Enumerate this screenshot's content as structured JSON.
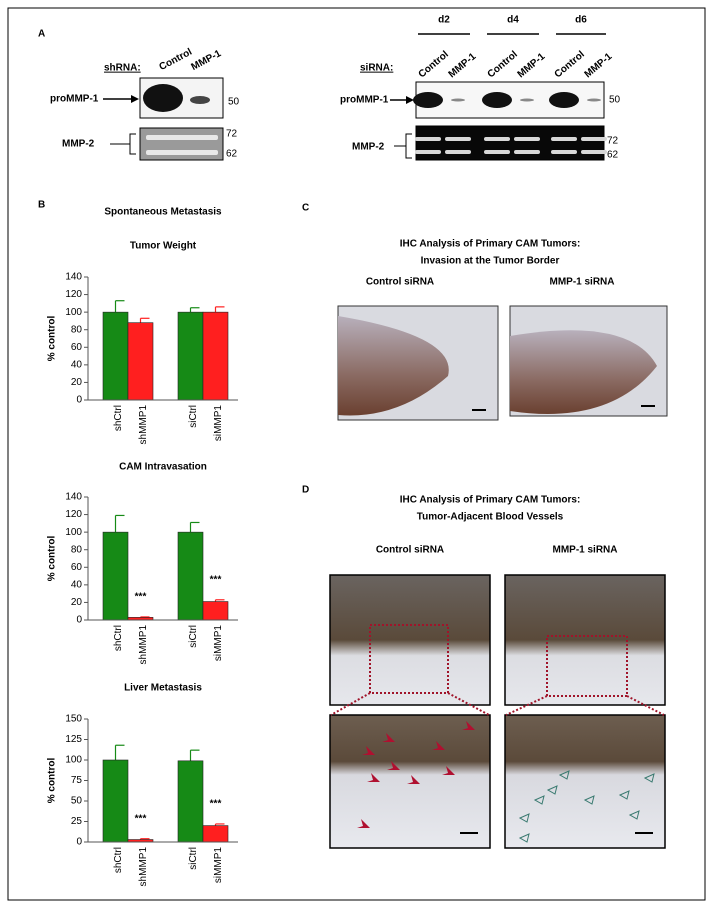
{
  "panels": {
    "a": "A",
    "b": "B",
    "c": "C",
    "d": "D"
  },
  "blot_sh": {
    "label": "shRNA:",
    "lanes": [
      "Control",
      "MMP-1"
    ],
    "bands": [
      "proMMP-1",
      "MMP-2"
    ],
    "markers": [
      50,
      72,
      62
    ]
  },
  "blot_si": {
    "label": "siRNA:",
    "days": [
      "d2",
      "d4",
      "d6"
    ],
    "lanes": [
      "Control",
      "MMP-1",
      "Control",
      "MMP-1",
      "Control",
      "MMP-1"
    ],
    "bands": [
      "proMMP-1",
      "MMP-2"
    ],
    "markers": [
      50,
      72,
      62
    ]
  },
  "panel_b_title": "Spontaneous Metastasis",
  "chart_data": [
    {
      "type": "bar",
      "title": "Tumor Weight",
      "ylabel": "% control",
      "categories": [
        "shCtrl",
        "shMMP1",
        "siCtrl",
        "siMMP1"
      ],
      "values": [
        100,
        88,
        100,
        100
      ],
      "errors": [
        13,
        5,
        5,
        6
      ],
      "colors": [
        "#168a16",
        "#ff1f1f",
        "#168a16",
        "#ff1f1f"
      ],
      "ylim": [
        0,
        140
      ],
      "yticks": [
        0,
        20,
        40,
        60,
        80,
        100,
        120,
        140
      ],
      "significance": [
        null,
        null,
        null,
        null
      ]
    },
    {
      "type": "bar",
      "title": "CAM Intravasation",
      "ylabel": "% control",
      "categories": [
        "shCtrl",
        "shMMP1",
        "siCtrl",
        "siMMP1"
      ],
      "values": [
        100,
        3,
        100,
        21
      ],
      "errors": [
        19,
        0.5,
        11,
        2
      ],
      "colors": [
        "#168a16",
        "#ff1f1f",
        "#168a16",
        "#ff1f1f"
      ],
      "ylim": [
        0,
        140
      ],
      "yticks": [
        0,
        20,
        40,
        60,
        80,
        100,
        120,
        140
      ],
      "significance": [
        null,
        "***",
        null,
        "***"
      ]
    },
    {
      "type": "bar",
      "title": "Liver Metastasis",
      "ylabel": "% control",
      "categories": [
        "shCtrl",
        "shMMP1",
        "siCtrl",
        "siMMP1"
      ],
      "values": [
        100,
        3,
        99,
        20
      ],
      "errors": [
        18,
        1,
        13,
        2
      ],
      "colors": [
        "#168a16",
        "#ff1f1f",
        "#168a16",
        "#ff1f1f"
      ],
      "ylim": [
        0,
        150
      ],
      "yticks": [
        0,
        25,
        50,
        75,
        100,
        125,
        150
      ],
      "significance": [
        null,
        "***",
        null,
        "***"
      ]
    }
  ],
  "panel_c": {
    "title": [
      "IHC Analysis of Primary CAM Tumors:",
      "Invasion at the Tumor Border"
    ],
    "captions": [
      "Control siRNA",
      "MMP-1 siRNA"
    ]
  },
  "panel_d": {
    "title": [
      "IHC Analysis of Primary CAM Tumors:",
      "Tumor-Adjacent Blood Vessels"
    ],
    "captions": [
      "Control siRNA",
      "MMP-1 siRNA"
    ]
  }
}
